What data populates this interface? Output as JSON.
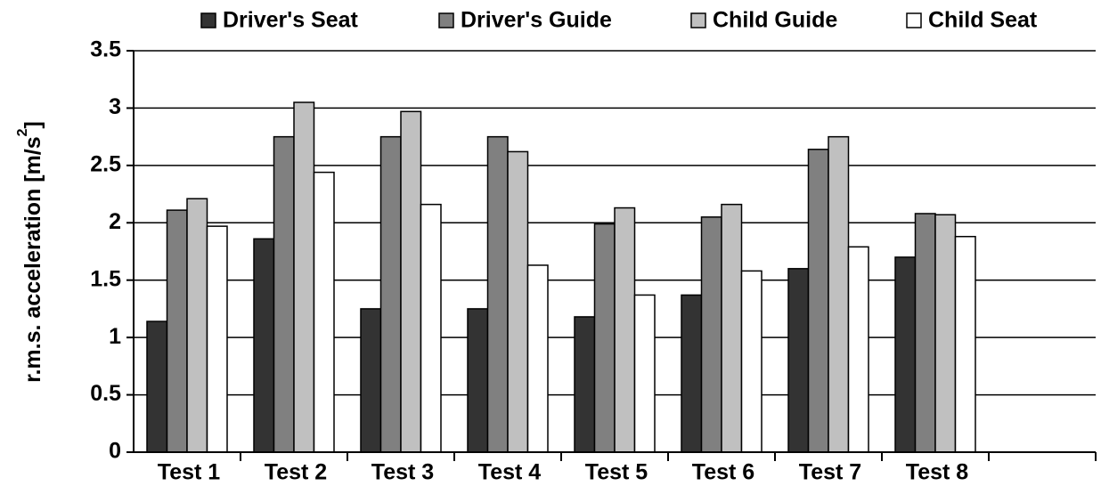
{
  "chart_data": {
    "type": "bar",
    "ylabel": "r.m.s. acceleration [m/s",
    "ylabel_sup": "2",
    "ylabel_end": "]",
    "categories": [
      "Test 1",
      "Test 2",
      "Test 3",
      "Test 4",
      "Test 5",
      "Test 6",
      "Test 7",
      "Test 8",
      null
    ],
    "series": [
      {
        "name": "Driver's Seat",
        "color": "#333333",
        "values": [
          1.14,
          1.86,
          1.25,
          1.25,
          1.18,
          1.37,
          1.6,
          1.7,
          null
        ]
      },
      {
        "name": "Driver's Guide",
        "color": "#808080",
        "values": [
          2.11,
          2.75,
          2.75,
          2.75,
          1.99,
          2.05,
          2.64,
          2.08,
          null
        ]
      },
      {
        "name": "Child Guide",
        "color": "#c0c0c0",
        "values": [
          2.21,
          3.05,
          2.97,
          2.62,
          2.13,
          2.16,
          2.75,
          2.07,
          null
        ]
      },
      {
        "name": "Child Seat",
        "color": "#ffffff",
        "values": [
          1.97,
          2.44,
          2.16,
          1.63,
          1.37,
          1.58,
          1.79,
          1.88,
          null
        ]
      }
    ],
    "ylim": [
      0,
      3.5
    ],
    "yticks": [
      0,
      0.5,
      1,
      1.5,
      2,
      2.5,
      3,
      3.5
    ],
    "grid": true,
    "legend": "top"
  }
}
